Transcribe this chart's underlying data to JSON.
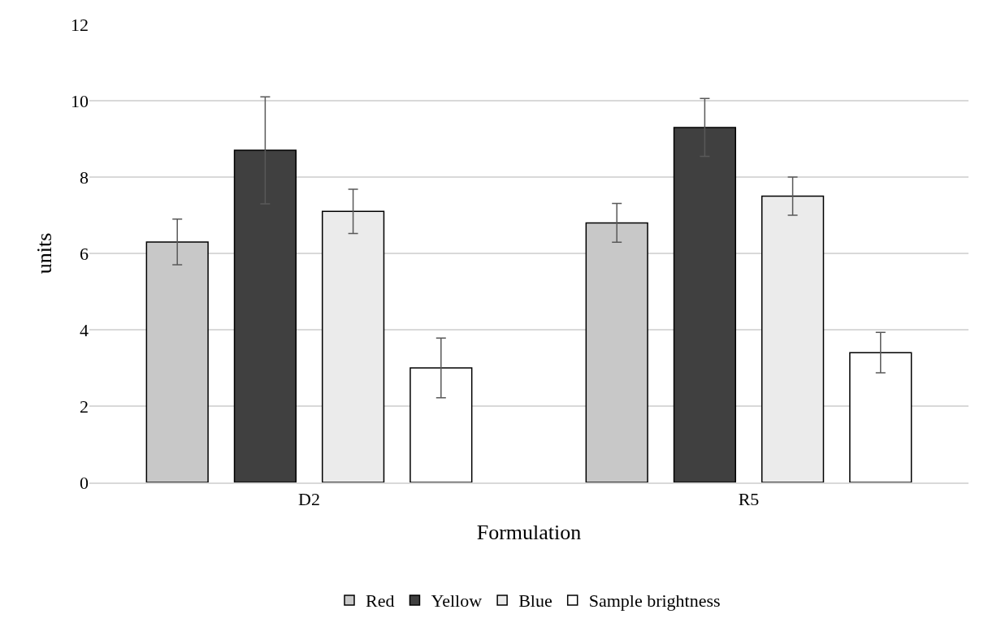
{
  "chart_data": {
    "type": "bar",
    "xlabel": "Formulation",
    "ylabel": "units",
    "categories": [
      "D2",
      "R5"
    ],
    "series": [
      {
        "name": "Red",
        "color": "#c8c8c8",
        "values": [
          6.3,
          6.8
        ],
        "errors": [
          0.6,
          0.51
        ]
      },
      {
        "name": "Yellow",
        "color": "#404040",
        "values": [
          8.7,
          9.3
        ],
        "errors": [
          1.4,
          0.76
        ]
      },
      {
        "name": "Blue",
        "color": "#ebebeb",
        "values": [
          7.1,
          7.5
        ],
        "errors": [
          0.58,
          0.5
        ]
      },
      {
        "name": "Sample brightness",
        "color": "#ffffff",
        "values": [
          3.0,
          3.4
        ],
        "errors": [
          0.78,
          0.53
        ]
      }
    ],
    "ylim": [
      0,
      12
    ],
    "yticks": [
      0,
      2,
      4,
      6,
      8,
      10,
      12
    ],
    "grid": "y",
    "legend": "bottom"
  }
}
